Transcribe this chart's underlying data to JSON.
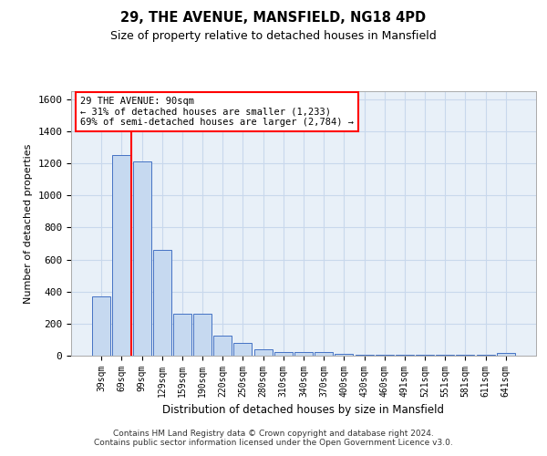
{
  "title": "29, THE AVENUE, MANSFIELD, NG18 4PD",
  "subtitle": "Size of property relative to detached houses in Mansfield",
  "xlabel": "Distribution of detached houses by size in Mansfield",
  "ylabel": "Number of detached properties",
  "categories": [
    "39sqm",
    "69sqm",
    "99sqm",
    "129sqm",
    "159sqm",
    "190sqm",
    "220sqm",
    "250sqm",
    "280sqm",
    "310sqm",
    "340sqm",
    "370sqm",
    "400sqm",
    "430sqm",
    "460sqm",
    "491sqm",
    "521sqm",
    "551sqm",
    "581sqm",
    "611sqm",
    "641sqm"
  ],
  "values": [
    370,
    1250,
    1210,
    660,
    260,
    260,
    125,
    80,
    40,
    25,
    20,
    20,
    10,
    5,
    5,
    5,
    3,
    3,
    3,
    3,
    15
  ],
  "bar_color": "#c6d9f0",
  "bar_edge_color": "#4472c4",
  "marker_line_color": "#ff0000",
  "annotation_text": "29 THE AVENUE: 90sqm\n← 31% of detached houses are smaller (1,233)\n69% of semi-detached houses are larger (2,784) →",
  "annotation_box_color": "#ffffff",
  "annotation_box_edge_color": "#ff0000",
  "ylim": [
    0,
    1650
  ],
  "yticks": [
    0,
    200,
    400,
    600,
    800,
    1000,
    1200,
    1400,
    1600
  ],
  "footer": "Contains HM Land Registry data © Crown copyright and database right 2024.\nContains public sector information licensed under the Open Government Licence v3.0.",
  "background_color": "#ffffff",
  "plot_bg_color": "#e8f0f8",
  "grid_color": "#c8d8ec"
}
